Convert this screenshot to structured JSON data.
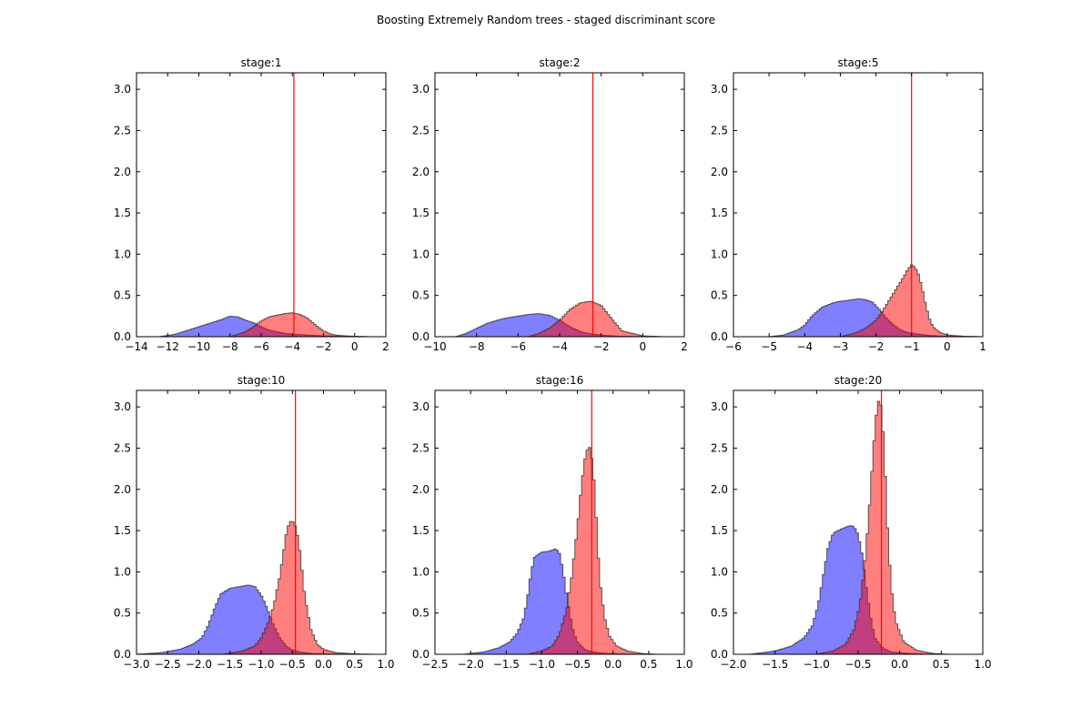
{
  "figure": {
    "suptitle": "Boosting Extremely Random trees - staged discriminant score"
  },
  "colors": {
    "background_class": "#0000ff",
    "signal_class": "#ff0000",
    "cut_line": "#ff0000",
    "edge": "#333333"
  },
  "chart_data": [
    {
      "type": "area",
      "title": "stage:1",
      "xlim": [
        -14,
        2
      ],
      "ylim": [
        0,
        3.2
      ],
      "xticks": [
        -14,
        -12,
        -10,
        -8,
        -6,
        -4,
        -2,
        0,
        2
      ],
      "xtick_labels": [
        "−14",
        "−12",
        "−10",
        "−8",
        "−6",
        "−4",
        "−2",
        "0",
        "2"
      ],
      "yticks": [
        0,
        0.5,
        1,
        1.5,
        2,
        2.5,
        3
      ],
      "ytick_labels": [
        "0.0",
        "0.5",
        "1.0",
        "1.5",
        "2.0",
        "2.5",
        "3.0"
      ],
      "cut": -3.9,
      "series": [
        {
          "color": "blue",
          "x": [
            -12.5,
            -11.5,
            -10.5,
            -9.5,
            -9,
            -8.5,
            -8,
            -7.5,
            -7,
            -6.5,
            -6,
            -5.5,
            -5,
            -4.5,
            -4,
            -3.5,
            -3,
            -2.5,
            -2,
            -1.5,
            -1,
            0,
            1
          ],
          "y": [
            0,
            0.03,
            0.09,
            0.15,
            0.18,
            0.21,
            0.25,
            0.24,
            0.2,
            0.17,
            0.12,
            0.08,
            0.06,
            0.04,
            0.03,
            0.025,
            0.02,
            0.015,
            0.01,
            0.008,
            0.005,
            0.002,
            0
          ]
        },
        {
          "color": "red",
          "x": [
            -8,
            -7.5,
            -7,
            -6.5,
            -6,
            -5.5,
            -5,
            -4.5,
            -4,
            -3.5,
            -3,
            -2.5,
            -2,
            -1.5,
            -1,
            0,
            1
          ],
          "y": [
            0,
            0.03,
            0.06,
            0.12,
            0.19,
            0.24,
            0.26,
            0.28,
            0.29,
            0.27,
            0.22,
            0.14,
            0.07,
            0.03,
            0.015,
            0.005,
            0
          ]
        }
      ]
    },
    {
      "type": "area",
      "title": "stage:2",
      "xlim": [
        -10,
        2
      ],
      "ylim": [
        0,
        3.2
      ],
      "xticks": [
        -10,
        -8,
        -6,
        -4,
        -2,
        0,
        2
      ],
      "xtick_labels": [
        "−10",
        "−8",
        "−6",
        "−4",
        "−2",
        "0",
        "2"
      ],
      "yticks": [
        0,
        0.5,
        1,
        1.5,
        2,
        2.5,
        3
      ],
      "ytick_labels": [
        "0.0",
        "0.5",
        "1.0",
        "1.5",
        "2.0",
        "2.5",
        "3.0"
      ],
      "cut": -2.4,
      "series": [
        {
          "color": "blue",
          "x": [
            -9,
            -8.5,
            -8,
            -7.5,
            -7,
            -6.5,
            -6,
            -5.5,
            -5,
            -4.5,
            -4,
            -3.5,
            -3,
            -2.5,
            -2,
            -1.5,
            -1,
            0,
            1
          ],
          "y": [
            0,
            0.04,
            0.1,
            0.16,
            0.2,
            0.23,
            0.25,
            0.27,
            0.28,
            0.26,
            0.2,
            0.12,
            0.06,
            0.035,
            0.02,
            0.01,
            0.005,
            0.002,
            0
          ]
        },
        {
          "color": "red",
          "x": [
            -5.5,
            -5,
            -4.5,
            -4,
            -3.5,
            -3,
            -2.5,
            -2,
            -1.5,
            -1,
            0,
            1
          ],
          "y": [
            0,
            0.04,
            0.1,
            0.2,
            0.33,
            0.41,
            0.43,
            0.38,
            0.22,
            0.07,
            0.01,
            0
          ]
        }
      ]
    },
    {
      "type": "area",
      "title": "stage:5",
      "xlim": [
        -6,
        1
      ],
      "ylim": [
        0,
        3.2
      ],
      "xticks": [
        -6,
        -5,
        -4,
        -3,
        -2,
        -1,
        0,
        1
      ],
      "xtick_labels": [
        "−6",
        "−5",
        "−4",
        "−3",
        "−2",
        "−1",
        "0",
        "1"
      ],
      "yticks": [
        0,
        0.5,
        1,
        1.5,
        2,
        2.5,
        3
      ],
      "ytick_labels": [
        "0.0",
        "0.5",
        "1.0",
        "1.5",
        "2.0",
        "2.5",
        "3.0"
      ],
      "cut": -1.0,
      "series": [
        {
          "color": "blue",
          "x": [
            -5,
            -4.6,
            -4.2,
            -4,
            -3.8,
            -3.5,
            -3.2,
            -3,
            -2.8,
            -2.5,
            -2.3,
            -2.1,
            -1.9,
            -1.7,
            -1.5,
            -1.3,
            -1.1,
            -0.8,
            -0.5,
            0,
            0.5,
            1
          ],
          "y": [
            0,
            0.02,
            0.08,
            0.14,
            0.25,
            0.36,
            0.41,
            0.43,
            0.44,
            0.46,
            0.45,
            0.42,
            0.33,
            0.22,
            0.14,
            0.08,
            0.05,
            0.03,
            0.015,
            0.005,
            0.002,
            0
          ]
        },
        {
          "color": "red",
          "x": [
            -3,
            -2.6,
            -2.3,
            -2,
            -1.8,
            -1.6,
            -1.4,
            -1.2,
            -1.1,
            -1,
            -0.9,
            -0.8,
            -0.7,
            -0.6,
            -0.5,
            -0.4,
            -0.2,
            0,
            0.5,
            1
          ],
          "y": [
            0,
            0.04,
            0.1,
            0.2,
            0.32,
            0.46,
            0.6,
            0.74,
            0.82,
            0.87,
            0.84,
            0.75,
            0.58,
            0.38,
            0.22,
            0.12,
            0.05,
            0.02,
            0.005,
            0
          ]
        }
      ]
    },
    {
      "type": "area",
      "title": "stage:10",
      "xlim": [
        -3,
        1
      ],
      "ylim": [
        0,
        3.2
      ],
      "xticks": [
        -3,
        -2.5,
        -2,
        -1.5,
        -1,
        -0.5,
        0,
        0.5,
        1
      ],
      "xtick_labels": [
        "−3.0",
        "−2.5",
        "−2.0",
        "−1.5",
        "−1.0",
        "−0.5",
        "0.0",
        "0.5",
        "1.0"
      ],
      "yticks": [
        0,
        0.5,
        1,
        1.5,
        2,
        2.5,
        3
      ],
      "ytick_labels": [
        "0.0",
        "0.5",
        "1.0",
        "1.5",
        "2.0",
        "2.5",
        "3.0"
      ],
      "cut": -0.45,
      "series": [
        {
          "color": "blue",
          "x": [
            -3,
            -2.6,
            -2.3,
            -2.1,
            -1.95,
            -1.85,
            -1.75,
            -1.65,
            -1.5,
            -1.35,
            -1.2,
            -1.1,
            -1.0,
            -0.9,
            -0.8,
            -0.7,
            -0.6,
            -0.5,
            -0.4,
            -0.2,
            0,
            0.5,
            0.8
          ],
          "y": [
            0,
            0.02,
            0.06,
            0.12,
            0.2,
            0.35,
            0.55,
            0.73,
            0.8,
            0.82,
            0.84,
            0.82,
            0.72,
            0.55,
            0.35,
            0.2,
            0.1,
            0.05,
            0.03,
            0.01,
            0.005,
            0.001,
            0
          ]
        },
        {
          "color": "red",
          "x": [
            -1.6,
            -1.3,
            -1.1,
            -1.0,
            -0.9,
            -0.8,
            -0.7,
            -0.65,
            -0.6,
            -0.55,
            -0.5,
            -0.45,
            -0.4,
            -0.35,
            -0.3,
            -0.2,
            -0.1,
            0,
            0.2,
            0.5,
            0.8
          ],
          "y": [
            0,
            0.04,
            0.1,
            0.2,
            0.36,
            0.58,
            0.95,
            1.2,
            1.45,
            1.6,
            1.62,
            1.55,
            1.38,
            1.05,
            0.7,
            0.3,
            0.12,
            0.06,
            0.02,
            0.005,
            0
          ]
        }
      ]
    },
    {
      "type": "area",
      "title": "stage:16",
      "xlim": [
        -2.5,
        1
      ],
      "ylim": [
        0,
        3.2
      ],
      "xticks": [
        -2.5,
        -2,
        -1.5,
        -1,
        -0.5,
        0,
        0.5,
        1
      ],
      "xtick_labels": [
        "−2.5",
        "−2.0",
        "−1.5",
        "−1.0",
        "−0.5",
        "0.0",
        "0.5",
        "1.0"
      ],
      "yticks": [
        0,
        0.5,
        1,
        1.5,
        2,
        2.5,
        3
      ],
      "ytick_labels": [
        "0.0",
        "0.5",
        "1.0",
        "1.5",
        "2.0",
        "2.5",
        "3.0"
      ],
      "cut": -0.3,
      "series": [
        {
          "color": "blue",
          "x": [
            -2.1,
            -1.8,
            -1.6,
            -1.45,
            -1.35,
            -1.25,
            -1.2,
            -1.15,
            -1.1,
            -1.0,
            -0.9,
            -0.8,
            -0.75,
            -0.7,
            -0.65,
            -0.6,
            -0.55,
            -0.5,
            -0.4,
            -0.3,
            -0.1,
            0.2,
            0.5
          ],
          "y": [
            0,
            0.03,
            0.08,
            0.15,
            0.25,
            0.45,
            0.7,
            1.0,
            1.18,
            1.24,
            1.25,
            1.28,
            1.22,
            1.0,
            0.7,
            0.45,
            0.25,
            0.15,
            0.06,
            0.03,
            0.01,
            0.003,
            0
          ]
        },
        {
          "color": "red",
          "x": [
            -1.2,
            -1.0,
            -0.85,
            -0.75,
            -0.65,
            -0.58,
            -0.5,
            -0.45,
            -0.4,
            -0.35,
            -0.32,
            -0.28,
            -0.25,
            -0.22,
            -0.18,
            -0.12,
            -0.05,
            0.05,
            0.2,
            0.4,
            0.6
          ],
          "y": [
            0,
            0.04,
            0.1,
            0.25,
            0.55,
            0.95,
            1.55,
            2.0,
            2.35,
            2.52,
            2.5,
            2.25,
            1.9,
            1.35,
            0.85,
            0.45,
            0.22,
            0.1,
            0.04,
            0.01,
            0
          ]
        }
      ]
    },
    {
      "type": "area",
      "title": "stage:20",
      "xlim": [
        -2,
        1
      ],
      "ylim": [
        0,
        3.2
      ],
      "xticks": [
        -2,
        -1.5,
        -1,
        -0.5,
        0,
        0.5,
        1
      ],
      "xtick_labels": [
        "−2.0",
        "−1.5",
        "−1.0",
        "−0.5",
        "0.0",
        "0.5",
        "1.0"
      ],
      "yticks": [
        0,
        0.5,
        1,
        1.5,
        2,
        2.5,
        3
      ],
      "ytick_labels": [
        "0.0",
        "0.5",
        "1.0",
        "1.5",
        "2.0",
        "2.5",
        "3.0"
      ],
      "cut": -0.22,
      "series": [
        {
          "color": "blue",
          "x": [
            -1.8,
            -1.5,
            -1.3,
            -1.15,
            -1.05,
            -0.98,
            -0.92,
            -0.86,
            -0.8,
            -0.7,
            -0.6,
            -0.55,
            -0.5,
            -0.45,
            -0.4,
            -0.35,
            -0.3,
            -0.2,
            -0.1,
            0.1,
            0.4
          ],
          "y": [
            0,
            0.04,
            0.1,
            0.2,
            0.35,
            0.6,
            0.95,
            1.3,
            1.47,
            1.52,
            1.56,
            1.55,
            1.45,
            1.2,
            0.8,
            0.45,
            0.2,
            0.07,
            0.03,
            0.01,
            0
          ]
        },
        {
          "color": "red",
          "x": [
            -1.0,
            -0.8,
            -0.65,
            -0.55,
            -0.48,
            -0.42,
            -0.37,
            -0.33,
            -0.3,
            -0.27,
            -0.25,
            -0.22,
            -0.2,
            -0.17,
            -0.14,
            -0.1,
            -0.05,
            0.05,
            0.2,
            0.4,
            0.6
          ],
          "y": [
            0,
            0.04,
            0.12,
            0.3,
            0.6,
            1.1,
            1.7,
            2.3,
            2.7,
            3.02,
            3.08,
            3.0,
            2.7,
            2.1,
            1.4,
            0.8,
            0.4,
            0.15,
            0.05,
            0.01,
            0
          ]
        }
      ]
    }
  ]
}
